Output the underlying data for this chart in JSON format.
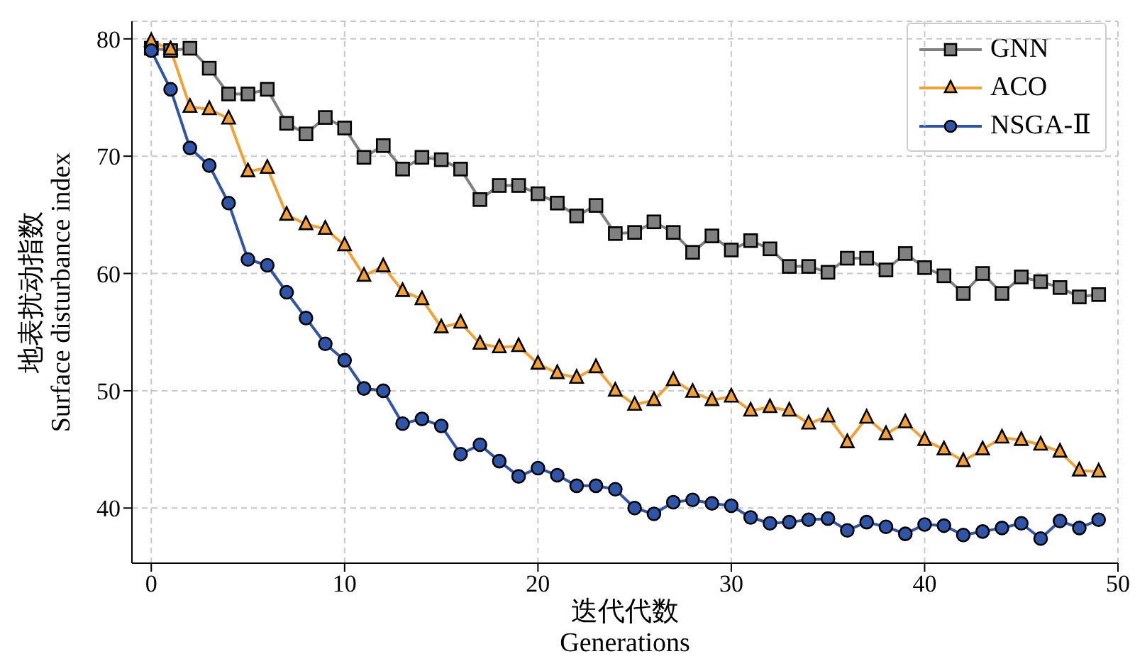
{
  "chart_data": {
    "type": "line",
    "xlabel": "迭代代数\nGenerations",
    "ylabel": "地表扰动指数\nSurface disturbance index",
    "x": [
      0,
      1,
      2,
      3,
      4,
      5,
      6,
      7,
      8,
      9,
      10,
      11,
      12,
      13,
      14,
      15,
      16,
      17,
      18,
      19,
      20,
      21,
      22,
      23,
      24,
      25,
      26,
      27,
      28,
      29,
      30,
      31,
      32,
      33,
      34,
      35,
      36,
      37,
      38,
      39,
      40,
      41,
      42,
      43,
      44,
      45,
      46,
      47,
      48,
      49
    ],
    "xlim": [
      -1,
      50
    ],
    "xticks": [
      0,
      10,
      20,
      30,
      40,
      50
    ],
    "ylim": [
      35.3,
      81.5
    ],
    "yticks": [
      40,
      50,
      60,
      70,
      80
    ],
    "grid": true,
    "legend": "top right",
    "series": [
      {
        "name": "GNN",
        "color": "#808080",
        "marker": "square",
        "values": [
          79.2,
          79,
          79.2,
          77.5,
          75.3,
          75.3,
          75.7,
          72.8,
          71.9,
          73.3,
          72.4,
          69.9,
          70.9,
          68.9,
          69.9,
          69.7,
          68.9,
          66.3,
          67.5,
          67.5,
          66.8,
          66.0,
          64.9,
          65.8,
          63.4,
          63.5,
          64.4,
          63.5,
          61.8,
          63.2,
          62.0,
          62.8,
          62.1,
          60.6,
          60.6,
          60.1,
          61.3,
          61.3,
          60.3,
          61.7,
          60.5,
          59.8,
          58.3,
          60.0,
          58.3,
          59.7,
          59.3,
          58.8,
          58.0,
          58.2
        ]
      },
      {
        "name": "ACO",
        "color": "#f5a033",
        "marker": "triangle",
        "values": [
          79.8,
          79.1,
          74.2,
          74.0,
          73.2,
          68.7,
          69.0,
          65.0,
          64.2,
          63.8,
          62.4,
          59.8,
          60.6,
          58.5,
          57.8,
          55.4,
          55.8,
          54.0,
          53.7,
          53.8,
          52.3,
          51.5,
          51.1,
          52.0,
          50.0,
          48.8,
          49.2,
          50.9,
          49.9,
          49.2,
          49.5,
          48.3,
          48.6,
          48.3,
          47.2,
          47.8,
          45.6,
          47.7,
          46.3,
          47.3,
          45.8,
          45.0,
          44.0,
          45.0,
          46.0,
          45.8,
          45.4,
          44.8,
          43.2,
          43.1
        ]
      },
      {
        "name": "NSGA-Ⅱ",
        "color": "#2f55a8",
        "marker": "circle",
        "values": [
          79.0,
          75.7,
          70.7,
          69.2,
          66.0,
          61.2,
          60.7,
          58.4,
          56.2,
          54.0,
          52.6,
          50.2,
          50.0,
          47.2,
          47.6,
          47.0,
          44.6,
          45.4,
          44.0,
          42.7,
          43.4,
          42.8,
          41.9,
          41.9,
          41.6,
          40.0,
          39.5,
          40.5,
          40.7,
          40.4,
          40.2,
          39.2,
          38.7,
          38.8,
          39.0,
          39.1,
          38.1,
          38.8,
          38.4,
          37.8,
          38.6,
          38.5,
          37.7,
          38.0,
          38.3,
          38.7,
          37.4,
          38.9,
          38.3,
          39.0
        ]
      }
    ]
  }
}
